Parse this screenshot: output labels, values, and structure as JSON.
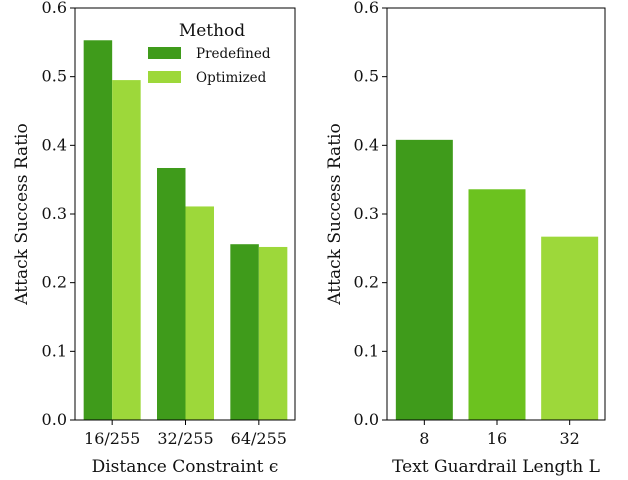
{
  "chart_data": [
    {
      "type": "bar",
      "xlabel": "Distance Constraint ϵ",
      "ylabel": "Attack Success Ratio",
      "categories": [
        "16/255",
        "32/255",
        "64/255"
      ],
      "ylim": [
        0,
        0.6
      ],
      "yticks": [
        "0.0",
        "0.1",
        "0.2",
        "0.3",
        "0.4",
        "0.5",
        "0.6"
      ],
      "legend": {
        "title": "Method",
        "placement": "top-right"
      },
      "series": [
        {
          "name": "Predefined",
          "color": "#3f9b1b",
          "values": [
            0.553,
            0.367,
            0.256
          ]
        },
        {
          "name": "Optimized",
          "color": "#9dd83a",
          "values": [
            0.495,
            0.311,
            0.252
          ]
        }
      ]
    },
    {
      "type": "bar",
      "xlabel": "Text Guardrail Length L",
      "ylabel": "Attack Success Ratio",
      "categories": [
        "8",
        "16",
        "32"
      ],
      "ylim": [
        0,
        0.6
      ],
      "yticks": [
        "0.0",
        "0.1",
        "0.2",
        "0.3",
        "0.4",
        "0.5",
        "0.6"
      ],
      "values": [
        0.408,
        0.336,
        0.267
      ],
      "colors": [
        "#3f9b1b",
        "#6cc21f",
        "#9dd83a"
      ]
    }
  ]
}
